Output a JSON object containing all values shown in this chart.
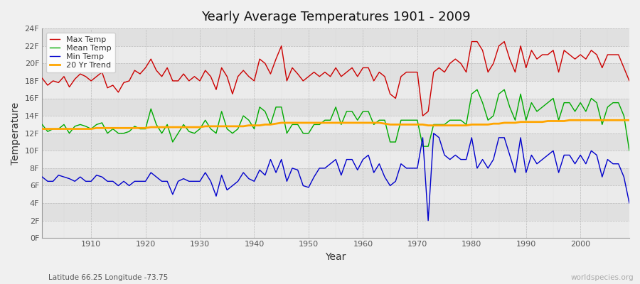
{
  "title": "Yearly Average Temperatures 1901 - 2009",
  "xlabel": "Year",
  "ylabel": "Temperature",
  "footnote_left": "Latitude 66.25 Longitude -73.75",
  "footnote_right": "worldspecies.org",
  "years": [
    1901,
    1902,
    1903,
    1904,
    1905,
    1906,
    1907,
    1908,
    1909,
    1910,
    1911,
    1912,
    1913,
    1914,
    1915,
    1916,
    1917,
    1918,
    1919,
    1920,
    1921,
    1922,
    1923,
    1924,
    1925,
    1926,
    1927,
    1928,
    1929,
    1930,
    1931,
    1932,
    1933,
    1934,
    1935,
    1936,
    1937,
    1938,
    1939,
    1940,
    1941,
    1942,
    1943,
    1944,
    1945,
    1946,
    1947,
    1948,
    1949,
    1950,
    1951,
    1952,
    1953,
    1954,
    1955,
    1956,
    1957,
    1958,
    1959,
    1960,
    1961,
    1962,
    1963,
    1964,
    1965,
    1966,
    1967,
    1968,
    1969,
    1970,
    1971,
    1972,
    1973,
    1974,
    1975,
    1976,
    1977,
    1978,
    1979,
    1980,
    1981,
    1982,
    1983,
    1984,
    1985,
    1986,
    1987,
    1988,
    1989,
    1990,
    1991,
    1992,
    1993,
    1994,
    1995,
    1996,
    1997,
    1998,
    1999,
    2000,
    2001,
    2002,
    2003,
    2004,
    2005,
    2006,
    2007,
    2008,
    2009
  ],
  "max_temp": [
    18.3,
    17.5,
    18.0,
    17.8,
    18.5,
    17.3,
    18.2,
    18.8,
    18.5,
    18.0,
    18.5,
    19.0,
    17.2,
    17.5,
    16.7,
    17.8,
    18.0,
    19.2,
    18.8,
    19.5,
    20.5,
    19.2,
    18.5,
    19.5,
    18.0,
    18.0,
    18.8,
    18.0,
    18.5,
    18.0,
    19.2,
    18.5,
    17.0,
    19.5,
    18.5,
    16.5,
    18.5,
    19.2,
    18.5,
    18.0,
    20.5,
    20.0,
    18.8,
    20.5,
    22.0,
    18.0,
    19.5,
    18.8,
    18.0,
    18.5,
    19.0,
    18.5,
    19.0,
    18.5,
    19.5,
    18.5,
    19.0,
    19.5,
    18.5,
    19.5,
    19.5,
    18.0,
    19.0,
    18.5,
    16.5,
    16.0,
    18.5,
    19.0,
    19.0,
    19.0,
    14.0,
    14.5,
    19.0,
    19.5,
    19.0,
    20.0,
    20.5,
    20.0,
    19.0,
    22.5,
    22.5,
    21.5,
    19.0,
    20.0,
    22.0,
    22.5,
    20.5,
    19.0,
    22.0,
    19.5,
    21.5,
    20.5,
    21.0,
    21.0,
    21.5,
    19.0,
    21.5,
    21.0,
    20.5,
    21.0,
    20.5,
    21.5,
    21.0,
    19.5,
    21.0,
    21.0,
    21.0,
    19.5,
    18.0
  ],
  "mean_temp": [
    13.0,
    12.2,
    12.5,
    12.5,
    13.0,
    12.0,
    12.8,
    13.0,
    12.8,
    12.5,
    13.0,
    13.2,
    12.0,
    12.5,
    12.0,
    12.0,
    12.2,
    12.8,
    12.5,
    12.5,
    14.8,
    13.0,
    12.0,
    13.0,
    11.0,
    12.0,
    13.0,
    12.2,
    12.0,
    12.5,
    13.5,
    12.5,
    12.0,
    14.5,
    12.5,
    12.0,
    12.5,
    14.0,
    13.5,
    12.5,
    15.0,
    14.5,
    13.0,
    15.0,
    15.0,
    12.0,
    13.0,
    13.0,
    12.0,
    12.0,
    13.0,
    13.0,
    13.5,
    13.5,
    15.0,
    13.0,
    14.5,
    14.5,
    13.5,
    14.5,
    14.5,
    13.0,
    13.5,
    13.5,
    11.0,
    11.0,
    13.5,
    13.5,
    13.5,
    13.5,
    10.5,
    10.5,
    13.0,
    13.0,
    13.0,
    13.5,
    13.5,
    13.5,
    13.0,
    16.5,
    17.0,
    15.5,
    13.5,
    14.0,
    16.5,
    17.0,
    15.0,
    13.5,
    16.5,
    13.5,
    15.5,
    14.5,
    15.0,
    15.5,
    16.0,
    13.5,
    15.5,
    15.5,
    14.5,
    15.5,
    14.5,
    16.0,
    15.5,
    13.0,
    15.0,
    15.5,
    15.5,
    14.0,
    10.0
  ],
  "min_temp": [
    7.0,
    6.5,
    6.5,
    7.2,
    7.0,
    6.8,
    6.5,
    7.0,
    6.5,
    6.5,
    7.2,
    7.0,
    6.5,
    6.5,
    6.0,
    6.5,
    6.0,
    6.5,
    6.5,
    6.5,
    7.5,
    7.0,
    6.5,
    6.5,
    5.0,
    6.5,
    6.8,
    6.5,
    6.5,
    6.5,
    7.5,
    6.5,
    4.8,
    7.2,
    5.5,
    6.0,
    6.5,
    7.5,
    6.8,
    6.5,
    7.8,
    7.2,
    9.0,
    7.5,
    9.0,
    6.5,
    8.0,
    7.8,
    6.0,
    5.8,
    7.0,
    8.0,
    8.0,
    8.5,
    9.0,
    7.2,
    9.0,
    9.0,
    7.8,
    9.0,
    9.5,
    7.5,
    8.5,
    7.0,
    6.0,
    6.5,
    8.5,
    8.0,
    8.0,
    8.0,
    11.5,
    2.0,
    12.0,
    11.5,
    9.5,
    9.0,
    9.5,
    9.0,
    9.0,
    11.5,
    8.0,
    9.0,
    8.0,
    9.0,
    11.5,
    11.5,
    9.5,
    7.5,
    11.5,
    7.5,
    9.5,
    8.5,
    9.0,
    9.5,
    10.0,
    7.5,
    9.5,
    9.5,
    8.5,
    9.5,
    8.5,
    10.0,
    9.5,
    7.0,
    9.0,
    8.5,
    8.5,
    7.0,
    4.0
  ],
  "trend": [
    12.5,
    12.5,
    12.5,
    12.5,
    12.5,
    12.5,
    12.5,
    12.5,
    12.5,
    12.5,
    12.6,
    12.6,
    12.6,
    12.6,
    12.6,
    12.6,
    12.6,
    12.6,
    12.6,
    12.6,
    12.7,
    12.7,
    12.7,
    12.7,
    12.7,
    12.7,
    12.7,
    12.7,
    12.7,
    12.7,
    12.8,
    12.8,
    12.8,
    12.8,
    12.8,
    12.8,
    12.8,
    12.8,
    12.9,
    12.9,
    12.9,
    13.0,
    13.0,
    13.1,
    13.2,
    13.2,
    13.2,
    13.2,
    13.2,
    13.2,
    13.2,
    13.2,
    13.2,
    13.2,
    13.2,
    13.2,
    13.2,
    13.2,
    13.2,
    13.2,
    13.2,
    13.2,
    13.2,
    13.1,
    13.0,
    13.0,
    13.0,
    13.0,
    13.0,
    13.0,
    13.0,
    12.9,
    12.9,
    12.9,
    12.9,
    12.9,
    12.9,
    12.9,
    12.9,
    13.0,
    13.0,
    13.0,
    13.0,
    13.1,
    13.1,
    13.2,
    13.2,
    13.2,
    13.3,
    13.3,
    13.3,
    13.3,
    13.3,
    13.4,
    13.4,
    13.4,
    13.4,
    13.5,
    13.5,
    13.5,
    13.5,
    13.5,
    13.5,
    13.5,
    13.5,
    13.5,
    13.5,
    13.5,
    13.5
  ],
  "max_color": "#cc0000",
  "mean_color": "#00aa00",
  "min_color": "#0000cc",
  "trend_color": "#ffa500",
  "bg_color": "#f0f0f0",
  "plot_bg_color": "#e8e8e8",
  "band_light": "#ebebeb",
  "band_dark": "#e0e0e0",
  "grid_color": "#cccccc",
  "ytick_labels": [
    "0F",
    "2F",
    "4F",
    "6F",
    "8F",
    "10F",
    "12F",
    "14F",
    "16F",
    "18F",
    "20F",
    "22F",
    "24F"
  ],
  "ytick_values": [
    0,
    2,
    4,
    6,
    8,
    10,
    12,
    14,
    16,
    18,
    20,
    22,
    24
  ],
  "ylim": [
    0,
    24
  ],
  "xlim": [
    1901,
    2009
  ]
}
